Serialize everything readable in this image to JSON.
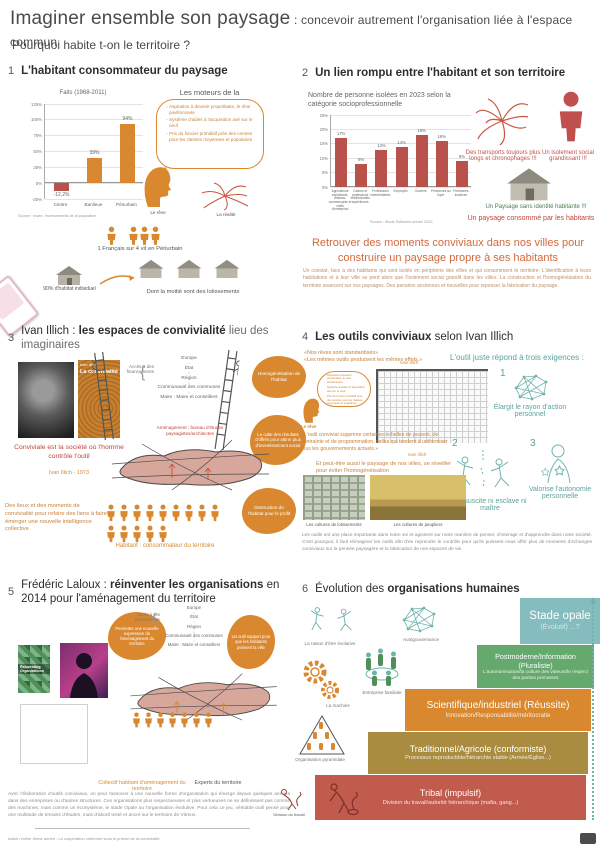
{
  "accent_colors": {
    "orange": "#d9882f",
    "red_bar": "#b9524c",
    "red_text": "#c0453a",
    "orange_red_heading": "#d4683c",
    "teal": "#6fb3ad"
  },
  "header": {
    "title": "Imaginer ensemble son paysage",
    "title_suffix": " : concevoir autrement l'organisation liée à l'espace commun",
    "question": "Pourquoi habite t-on le territoire ?"
  },
  "periurb_drivers": [
    "Aspiration à devenir propriétaire, le rêve pavillonnaire",
    "Système d'aides à l'acquisition axé sur le neuf",
    "Prix du foncier prohibitif près des centres pour les classes moyennes et populaires"
  ],
  "section1": {
    "number": "1",
    "title": "L'habitant consommateur du paysage",
    "drivers_title": "Les moteurs de la périurbanisation",
    "dream_label": "Le rêve",
    "reality_label": "La réalité",
    "stat_people": "1 Français sur 4 vit en Périurbain",
    "stat_housing": "90% d'habitat individuel",
    "stat_lotissements": "Dont la moitié sont des lotissements"
  },
  "section2": {
    "number": "2",
    "title": "Un lien rompu entre l'habitant et son territoire",
    "transport_note": "Des transports toujours plus longs et chronophages !!!",
    "isolation_note": "Un isolement social grandissant !!!",
    "landscape_note": "Un Paysage sans identité habitante !!!",
    "consumed_note": "Un paysage consommé par les habitants",
    "headline": "Retrouver des moments conviviaux dans nos villes pour construire un paysage propre à ses habitants",
    "paragraph": "Un constat, face à des habitants qui sont isolés en périphérie des villes et qui consomment le territoire. L'identification à leurs habitations et à leur ville se perd alors que l'isolement social grandit dans les villes. La construction et l'homogénéisation du territoire avancent sur nos paysages. Des pensées anciennes et nouvelles pour repenser la fabrication du paysage."
  },
  "section3": {
    "number": "3",
    "title_prefix": "Ivan Illich : ",
    "title_bold": "les espaces de convivialité",
    "title_suffix": " lieu des imaginaires",
    "book_author": "Ivan Illich",
    "book_title": "La convivialité",
    "quote": "Conviviale est la société où l'homme contrôle l'outil",
    "quote_source": "Ivan Illich - 1973",
    "hierarchy_label": "Accès à des financements",
    "hierarchy": [
      "Europe",
      "État",
      "Région",
      "Communauté des communes",
      "Maire : Maire et conseillers"
    ],
    "hierarchy_red": "Aménagement : bureau d'études paysagistes/architectes",
    "blob_homogeneisation": "Homogénéisation de l'habitat",
    "blob_resultats": "Le culte des résultats chiffrés pour attirer plus d'investissement social",
    "blob_destruction": "Destruction de l'habitat pour le profit",
    "crowd_caption": "Habitant : consommateur du territoire",
    "note": "Des lieux et des moments de convivialité pour refaire des liens à faire émerger une nouvelle intelligence collective"
  },
  "section4": {
    "number": "4",
    "title_bold": "Les outils conviviaux",
    "title_suffix": " selon Ivan Illich",
    "quote1": "«Nos rêves sont standardisés»",
    "quote2": "«Les mêmes outils produisent les mêmes effets.»",
    "quote_source": "Ivan Illich",
    "dream_label": "Le rêve",
    "exigences_title": "L'outil juste répond à trois exigences :",
    "exigences": [
      {
        "num": "1",
        "label": "Élargit le rayon d'action personnel"
      },
      {
        "num": "2",
        "label": "Ne suscite ni esclave ni maître"
      },
      {
        "num": "3",
        "label": "Valorise l'autonomie personnelle"
      }
    ],
    "quote3": "«L'outil convivial supprime certaines échelles de pouvoir, de contrainte et de programmation, celles qui tendent à uniformiser tous les gouvernements actuels.»",
    "quote3_source": "Ivan Illich",
    "note": "Et peut-être aussi le paysage de nos villes, se réveiller pour éviter l'homogénéisation",
    "photo1_caption": "Les cultures de lotissements",
    "photo2_caption": "Les cultures de peupliers",
    "paragraph": "Les outils ont une place importante dans notre vie et agissent sur notre manière de penser, d'interagir et d'apprendre dans notre société. C'est pourquoi, il faut réimaginer les outils afin d'en reprendre le contrôle pour qu'ils puissent nous offrir plus de moments d'échanges conviviaux sur la pensée paysagère et la fabrication de nos espaces de vie."
  },
  "section5": {
    "number": "5",
    "title_prefix": "Frédéric Laloux : ",
    "title_bold": "réinventer les organisations",
    "title_suffix": " en 2014 pour l'aménagement du territoire",
    "book_title": "Reinventing Organizations",
    "hierarchy_label": "Accès à des financements",
    "hierarchy": [
      "Europe",
      "État",
      "Région",
      "Communauté des communes",
      "Maire : Maire et conseillers"
    ],
    "blob_left": "Permettre une nouvelle expression de l'aménagement du territoire",
    "blob_right": "Un outil support pour que les habitants pensent la ville",
    "caption_left": "Collectif habitant d'aménagement du territoire",
    "caption_right": "Experts du territoire",
    "division_label": "Division du travail",
    "paragraph": "Avec l'élaboration d'outils conviviaux, on peut l'associer à une nouvelle forme d'organisation qui émerge depuis quelques années dans des entreprises ou d'autres structures. Ces organisations plus respectueuses et plus vertueuses ne se définissent pas comme des machines, mais comme un écosystème, le stade Opale ou l'organisation évolutive. Pour cela ce jeu, véritable outil pensé pour une multitude de terrains d'études, mais d'abord testé et ancré sur le territoire de Vitreux."
  },
  "section6": {
    "number": "6",
    "title_prefix": "Évolution des ",
    "title_bold": "organisations humaines",
    "icon_labels": {
      "raison": "La raison d'être évolutive",
      "autogouvernance": "Autogouvernance",
      "plenitude": "Plénitude",
      "entreprise": "Entreprise familiale",
      "machine": "La machine",
      "pyramide": "Organisation pyramidale"
    },
    "stages": [
      {
        "name": "Stade opale",
        "detail": "(Évolutif) ...?",
        "color": "#85bcbd"
      },
      {
        "name": "Postmoderne/Information (Pluraliste)",
        "detail": "L'autonomisation/la culture des valeurs/le respect des parties prenantes",
        "color": "#66a96e"
      },
      {
        "name": "Scientifique/industriel (Réussite)",
        "detail": "Innovation/Responsabilité/méritocratie",
        "color": "#d9882f"
      },
      {
        "name": "Traditionnel/Agricole (conformiste)",
        "detail": "Processus reproductible/hiérarchie stable (Armée/Église...)",
        "color": "#a98c3f"
      },
      {
        "name": "Tribal (impulsif)",
        "detail": "Division du travail/autorité hiérarchique (mafia, gang...)",
        "color": "#c05b4d"
      }
    ]
  },
  "footer": {
    "credit": "Adrien Voilier 5ème année : La coopération vitréenne sous le prisme de la convivialité"
  },
  "chart_data": [
    {
      "type": "bar",
      "title": "Faits (1968-2011)",
      "categories": [
        "Centre",
        "Banlieue",
        "Périurbain"
      ],
      "values": [
        -12.2,
        39,
        94
      ],
      "bar_labels": [
        "-12,2%",
        "39%",
        "94%"
      ],
      "colors": [
        "#b9524c",
        "#d9882f",
        "#d9882f"
      ],
      "ylim": [
        -25,
        125
      ],
      "yticks": [
        "125%",
        "100%",
        "75%",
        "50%",
        "25%",
        "0%",
        "-25%"
      ],
      "grid": true,
      "source": "Source : Insee, recensements de la population"
    },
    {
      "type": "bar",
      "title": "Nombre de personne isolées en 2023 selon la catégorie socioprofessionnelle",
      "categories": [
        "Agriculteurs exploitants, artisans, commerçants et chefs d'entreprise",
        "Cadres et professions intellectuelles supérieures",
        "Professions intermédiaires",
        "Employés",
        "Ouvriers",
        "Personnes au foyer",
        "Personnes inactives"
      ],
      "values": [
        17,
        8,
        13,
        14,
        18,
        16,
        9
      ],
      "bar_labels": [
        "17%",
        "8%",
        "13%",
        "14%",
        "18%",
        "16%",
        "9%"
      ],
      "colors": [
        "#b9524c",
        "#b9524c",
        "#b9524c",
        "#b9524c",
        "#b9524c",
        "#b9524c",
        "#b9524c"
      ],
      "ylim": [
        0,
        25
      ],
      "yticks": [
        "25%",
        "20%",
        "15%",
        "10%",
        "5%",
        "0%"
      ],
      "grid": true,
      "source": "Source : étude Solitudes année 2023"
    }
  ]
}
